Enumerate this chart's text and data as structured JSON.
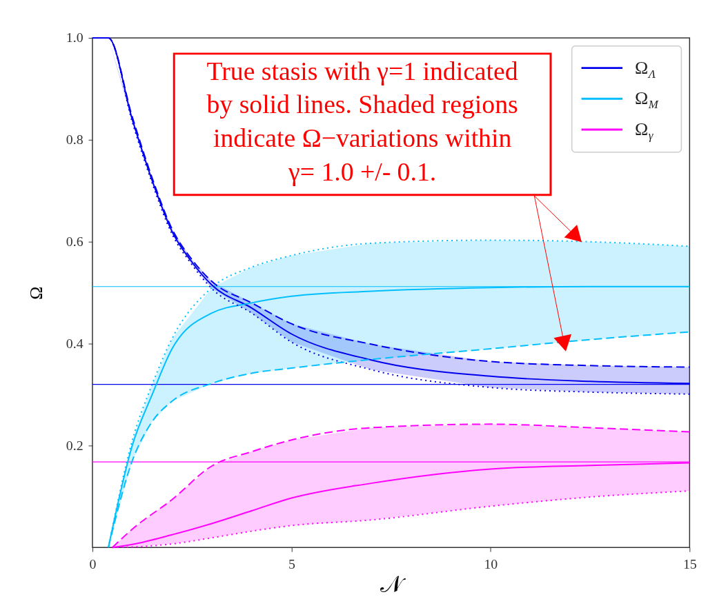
{
  "chart_data": {
    "type": "line",
    "xlabel": "𝒩",
    "ylabel": "Ω",
    "xlim": [
      0,
      15
    ],
    "ylim": [
      0,
      1
    ],
    "xticks": [
      0,
      5,
      10,
      15
    ],
    "yticks": [
      0.2,
      0.4,
      0.6,
      0.8,
      {
        "value": 1,
        "label": "1.0"
      }
    ],
    "grid": false,
    "legend": "top right",
    "marker": "none",
    "annotations": [
      "True stasis with γ=1 indicated\nby solid lines.  Shaded regions\nindicate Ω−variations within\nγ= 1.0 +/- 0.1."
    ],
    "ref_lines": [
      {
        "axis": "y",
        "value": 0.32,
        "color": "#0000ee"
      },
      {
        "axis": "y",
        "value": 0.512,
        "color": "#00bfff"
      },
      {
        "axis": "y",
        "value": 0.168,
        "color": "#ff00ff"
      }
    ],
    "series": [
      {
        "name": "Ω$_{Λ}$",
        "color": "#0000ee",
        "line_style": "solid",
        "x": [
          0,
          0.4,
          1,
          1.5,
          2,
          2.5,
          3,
          4,
          5,
          7,
          10,
          12.5,
          15
        ],
        "values": [
          1,
          1,
          0.84,
          0.72,
          0.62,
          0.56,
          0.515,
          0.47,
          0.419,
          0.368,
          0.336,
          0.326,
          0.322
        ],
        "lower": [
          1,
          1,
          0.835,
          0.715,
          0.615,
          0.555,
          0.508,
          0.46,
          0.403,
          0.349,
          0.314,
          0.305,
          0.301
        ],
        "upper": [
          1,
          1,
          0.845,
          0.725,
          0.625,
          0.565,
          0.522,
          0.48,
          0.439,
          0.399,
          0.365,
          0.357,
          0.354
        ]
      },
      {
        "name": "Ω$_{M}$",
        "color": "#00bfff",
        "line_style": "solid",
        "x": [
          0.4,
          1,
          1.5,
          2,
          3,
          4,
          5,
          7,
          10,
          12.5,
          15
        ],
        "values": [
          0,
          0.2,
          0.3,
          0.39,
          0.46,
          0.48,
          0.493,
          0.503,
          0.51,
          0.512,
          0.512
        ],
        "lower": [
          0,
          0.17,
          0.247,
          0.287,
          0.322,
          0.342,
          0.352,
          0.369,
          0.39,
          0.408,
          0.423
        ],
        "upper": [
          0,
          0.21,
          0.32,
          0.41,
          0.51,
          0.55,
          0.573,
          0.597,
          0.603,
          0.6,
          0.591
        ]
      },
      {
        "name": "Ω$_{γ}$",
        "color": "#ff00ff",
        "line_style": "solid",
        "x": [
          0.5,
          1,
          2,
          3,
          4,
          5,
          7,
          10,
          12.5,
          15
        ],
        "values": [
          0,
          0.006,
          0.025,
          0.047,
          0.072,
          0.097,
          0.126,
          0.154,
          0.161,
          0.166
        ],
        "lower": [
          0,
          0.001,
          0.007,
          0.019,
          0.032,
          0.043,
          0.054,
          0.081,
          0.099,
          0.111
        ],
        "upper": [
          0,
          0.036,
          0.094,
          0.16,
          0.188,
          0.211,
          0.235,
          0.242,
          0.235,
          0.227
        ]
      },
      {
        "color": "#0000ee",
        "line_style": "dashed",
        "x": [
          0,
          0.4,
          1,
          1.5,
          2,
          2.5,
          3,
          4,
          5,
          7,
          10,
          12.5,
          15
        ],
        "values": [
          1,
          1,
          0.845,
          0.725,
          0.625,
          0.565,
          0.522,
          0.48,
          0.439,
          0.399,
          0.365,
          0.357,
          0.354
        ]
      },
      {
        "color": "#0000ee",
        "line_style": "dotted",
        "x": [
          0,
          0.4,
          1,
          1.5,
          2,
          2.5,
          3,
          4,
          5,
          7,
          10,
          12.5,
          15
        ],
        "values": [
          1,
          1,
          0.835,
          0.715,
          0.615,
          0.555,
          0.508,
          0.46,
          0.403,
          0.349,
          0.314,
          0.305,
          0.301
        ]
      },
      {
        "color": "#00bfff",
        "line_style": "dashed",
        "x": [
          0.4,
          1,
          1.5,
          2,
          3,
          4,
          5,
          7,
          10,
          12.5,
          15
        ],
        "values": [
          0,
          0.17,
          0.247,
          0.287,
          0.322,
          0.342,
          0.352,
          0.369,
          0.39,
          0.408,
          0.423
        ]
      },
      {
        "color": "#00bfff",
        "line_style": "dotted",
        "x": [
          0.4,
          1,
          1.5,
          2,
          3,
          4,
          5,
          7,
          10,
          12.5,
          15
        ],
        "values": [
          0,
          0.21,
          0.32,
          0.41,
          0.51,
          0.55,
          0.573,
          0.597,
          0.603,
          0.6,
          0.591
        ]
      },
      {
        "color": "#ff00ff",
        "line_style": "dashed",
        "x": [
          0.5,
          1,
          2,
          3,
          4,
          5,
          7,
          10,
          12.5,
          15
        ],
        "values": [
          0,
          0.036,
          0.094,
          0.16,
          0.188,
          0.211,
          0.235,
          0.242,
          0.235,
          0.227
        ]
      },
      {
        "color": "#ff00ff",
        "line_style": "dotted",
        "x": [
          0.5,
          1,
          2,
          3,
          4,
          5,
          7,
          10,
          12.5,
          15
        ],
        "values": [
          0,
          0.001,
          0.007,
          0.019,
          0.032,
          0.043,
          0.054,
          0.081,
          0.099,
          0.111
        ]
      }
    ]
  }
}
